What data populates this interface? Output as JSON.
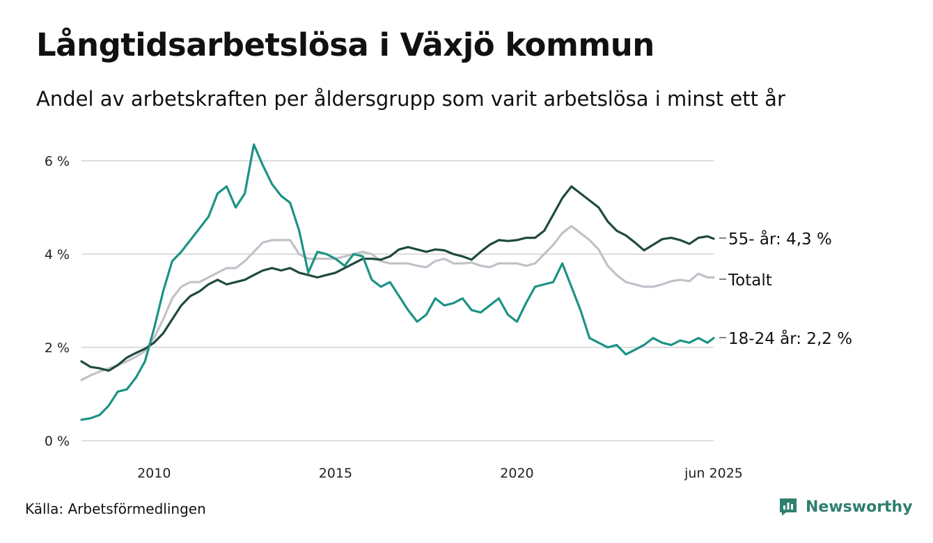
{
  "title": "Långtidsarbetslösa i Växjö kommun",
  "subtitle": "Andel av arbetskraften per åldersgrupp som varit arbetslösa i minst ett år",
  "source": "Källa: Arbetsförmedlingen",
  "brand": "Newsworthy",
  "colors": {
    "age55": "#1e4a3c",
    "total": "#c1c1c9",
    "age18_24": "#1b9384",
    "grid": "#dddddd",
    "brand": "#2f7f6f"
  },
  "chart_data": {
    "type": "line",
    "x_unit": "year (decimal)",
    "xlim": [
      2008.0,
      2025.42
    ],
    "ylim": [
      0,
      6.4
    ],
    "y_ticks": [
      0,
      2,
      4,
      6
    ],
    "y_tick_labels": [
      "0 %",
      "2 %",
      "4 %",
      "6 %"
    ],
    "x_ticks": [
      2010,
      2015,
      2020,
      2025.42
    ],
    "x_tick_labels": [
      "2010",
      "2015",
      "2020",
      "jun 2025"
    ],
    "grid": "horizontal",
    "legend": "end-of-line labels",
    "series": [
      {
        "key": "age55",
        "end_label": "55- år: 4,3 %",
        "points": [
          [
            2008.0,
            1.7
          ],
          [
            2008.25,
            1.58
          ],
          [
            2008.5,
            1.55
          ],
          [
            2008.75,
            1.5
          ],
          [
            2009.0,
            1.62
          ],
          [
            2009.25,
            1.78
          ],
          [
            2009.5,
            1.88
          ],
          [
            2009.75,
            1.97
          ],
          [
            2010.0,
            2.1
          ],
          [
            2010.25,
            2.3
          ],
          [
            2010.5,
            2.6
          ],
          [
            2010.75,
            2.9
          ],
          [
            2011.0,
            3.1
          ],
          [
            2011.25,
            3.2
          ],
          [
            2011.5,
            3.35
          ],
          [
            2011.75,
            3.45
          ],
          [
            2012.0,
            3.35
          ],
          [
            2012.25,
            3.4
          ],
          [
            2012.5,
            3.45
          ],
          [
            2012.75,
            3.55
          ],
          [
            2013.0,
            3.65
          ],
          [
            2013.25,
            3.7
          ],
          [
            2013.5,
            3.65
          ],
          [
            2013.75,
            3.7
          ],
          [
            2014.0,
            3.6
          ],
          [
            2014.25,
            3.55
          ],
          [
            2014.5,
            3.5
          ],
          [
            2014.75,
            3.55
          ],
          [
            2015.0,
            3.6
          ],
          [
            2015.25,
            3.7
          ],
          [
            2015.5,
            3.8
          ],
          [
            2015.75,
            3.9
          ],
          [
            2016.0,
            3.9
          ],
          [
            2016.25,
            3.88
          ],
          [
            2016.5,
            3.95
          ],
          [
            2016.75,
            4.1
          ],
          [
            2017.0,
            4.15
          ],
          [
            2017.25,
            4.1
          ],
          [
            2017.5,
            4.05
          ],
          [
            2017.75,
            4.1
          ],
          [
            2018.0,
            4.08
          ],
          [
            2018.25,
            4.0
          ],
          [
            2018.5,
            3.95
          ],
          [
            2018.75,
            3.88
          ],
          [
            2019.0,
            4.05
          ],
          [
            2019.25,
            4.2
          ],
          [
            2019.5,
            4.3
          ],
          [
            2019.75,
            4.28
          ],
          [
            2020.0,
            4.3
          ],
          [
            2020.25,
            4.35
          ],
          [
            2020.5,
            4.35
          ],
          [
            2020.75,
            4.5
          ],
          [
            2021.0,
            4.85
          ],
          [
            2021.25,
            5.2
          ],
          [
            2021.5,
            5.45
          ],
          [
            2021.75,
            5.3
          ],
          [
            2022.0,
            5.15
          ],
          [
            2022.25,
            5.0
          ],
          [
            2022.5,
            4.7
          ],
          [
            2022.75,
            4.5
          ],
          [
            2023.0,
            4.4
          ],
          [
            2023.25,
            4.25
          ],
          [
            2023.5,
            4.08
          ],
          [
            2023.75,
            4.2
          ],
          [
            2024.0,
            4.32
          ],
          [
            2024.25,
            4.35
          ],
          [
            2024.5,
            4.3
          ],
          [
            2024.75,
            4.22
          ],
          [
            2025.0,
            4.35
          ],
          [
            2025.25,
            4.38
          ],
          [
            2025.42,
            4.33
          ]
        ]
      },
      {
        "key": "total",
        "end_label": "Totalt",
        "points": [
          [
            2008.0,
            1.3
          ],
          [
            2008.25,
            1.4
          ],
          [
            2008.5,
            1.48
          ],
          [
            2008.75,
            1.55
          ],
          [
            2009.0,
            1.62
          ],
          [
            2009.25,
            1.7
          ],
          [
            2009.5,
            1.8
          ],
          [
            2009.75,
            1.92
          ],
          [
            2010.0,
            2.2
          ],
          [
            2010.25,
            2.6
          ],
          [
            2010.5,
            3.05
          ],
          [
            2010.75,
            3.3
          ],
          [
            2011.0,
            3.4
          ],
          [
            2011.25,
            3.4
          ],
          [
            2011.5,
            3.5
          ],
          [
            2011.75,
            3.6
          ],
          [
            2012.0,
            3.7
          ],
          [
            2012.25,
            3.7
          ],
          [
            2012.5,
            3.85
          ],
          [
            2012.75,
            4.05
          ],
          [
            2013.0,
            4.25
          ],
          [
            2013.25,
            4.3
          ],
          [
            2013.5,
            4.3
          ],
          [
            2013.75,
            4.3
          ],
          [
            2014.0,
            4.0
          ],
          [
            2014.25,
            3.9
          ],
          [
            2014.5,
            3.9
          ],
          [
            2014.75,
            3.9
          ],
          [
            2015.0,
            3.9
          ],
          [
            2015.25,
            3.95
          ],
          [
            2015.5,
            4.0
          ],
          [
            2015.75,
            4.05
          ],
          [
            2016.0,
            4.0
          ],
          [
            2016.25,
            3.85
          ],
          [
            2016.5,
            3.8
          ],
          [
            2016.75,
            3.8
          ],
          [
            2017.0,
            3.8
          ],
          [
            2017.25,
            3.75
          ],
          [
            2017.5,
            3.72
          ],
          [
            2017.75,
            3.85
          ],
          [
            2018.0,
            3.9
          ],
          [
            2018.25,
            3.8
          ],
          [
            2018.5,
            3.8
          ],
          [
            2018.75,
            3.82
          ],
          [
            2019.0,
            3.75
          ],
          [
            2019.25,
            3.72
          ],
          [
            2019.5,
            3.8
          ],
          [
            2019.75,
            3.8
          ],
          [
            2020.0,
            3.8
          ],
          [
            2020.25,
            3.75
          ],
          [
            2020.5,
            3.8
          ],
          [
            2020.75,
            4.0
          ],
          [
            2021.0,
            4.2
          ],
          [
            2021.25,
            4.45
          ],
          [
            2021.5,
            4.6
          ],
          [
            2021.75,
            4.45
          ],
          [
            2022.0,
            4.3
          ],
          [
            2022.25,
            4.1
          ],
          [
            2022.5,
            3.75
          ],
          [
            2022.75,
            3.55
          ],
          [
            2023.0,
            3.4
          ],
          [
            2023.25,
            3.35
          ],
          [
            2023.5,
            3.3
          ],
          [
            2023.75,
            3.3
          ],
          [
            2024.0,
            3.35
          ],
          [
            2024.25,
            3.42
          ],
          [
            2024.5,
            3.45
          ],
          [
            2024.75,
            3.42
          ],
          [
            2025.0,
            3.58
          ],
          [
            2025.25,
            3.5
          ],
          [
            2025.42,
            3.5
          ]
        ]
      },
      {
        "key": "age18_24",
        "end_label": "18-24 år: 2,2 %",
        "points": [
          [
            2008.0,
            0.45
          ],
          [
            2008.25,
            0.48
          ],
          [
            2008.5,
            0.55
          ],
          [
            2008.75,
            0.75
          ],
          [
            2009.0,
            1.05
          ],
          [
            2009.25,
            1.1
          ],
          [
            2009.5,
            1.35
          ],
          [
            2009.75,
            1.7
          ],
          [
            2010.0,
            2.4
          ],
          [
            2010.25,
            3.2
          ],
          [
            2010.5,
            3.85
          ],
          [
            2010.75,
            4.05
          ],
          [
            2011.0,
            4.3
          ],
          [
            2011.25,
            4.55
          ],
          [
            2011.5,
            4.8
          ],
          [
            2011.75,
            5.3
          ],
          [
            2012.0,
            5.45
          ],
          [
            2012.25,
            5.0
          ],
          [
            2012.5,
            5.3
          ],
          [
            2012.75,
            6.35
          ],
          [
            2013.0,
            5.9
          ],
          [
            2013.25,
            5.5
          ],
          [
            2013.5,
            5.25
          ],
          [
            2013.75,
            5.1
          ],
          [
            2014.0,
            4.5
          ],
          [
            2014.25,
            3.6
          ],
          [
            2014.5,
            4.05
          ],
          [
            2014.75,
            4.0
          ],
          [
            2015.0,
            3.9
          ],
          [
            2015.25,
            3.75
          ],
          [
            2015.5,
            4.0
          ],
          [
            2015.75,
            3.95
          ],
          [
            2016.0,
            3.45
          ],
          [
            2016.25,
            3.3
          ],
          [
            2016.5,
            3.4
          ],
          [
            2016.75,
            3.1
          ],
          [
            2017.0,
            2.8
          ],
          [
            2017.25,
            2.55
          ],
          [
            2017.5,
            2.7
          ],
          [
            2017.75,
            3.05
          ],
          [
            2018.0,
            2.9
          ],
          [
            2018.25,
            2.95
          ],
          [
            2018.5,
            3.05
          ],
          [
            2018.75,
            2.8
          ],
          [
            2019.0,
            2.75
          ],
          [
            2019.25,
            2.9
          ],
          [
            2019.5,
            3.05
          ],
          [
            2019.75,
            2.7
          ],
          [
            2020.0,
            2.55
          ],
          [
            2020.25,
            2.95
          ],
          [
            2020.5,
            3.3
          ],
          [
            2020.75,
            3.35
          ],
          [
            2021.0,
            3.4
          ],
          [
            2021.25,
            3.8
          ],
          [
            2021.5,
            3.3
          ],
          [
            2021.75,
            2.8
          ],
          [
            2022.0,
            2.2
          ],
          [
            2022.25,
            2.1
          ],
          [
            2022.5,
            2.0
          ],
          [
            2022.75,
            2.05
          ],
          [
            2023.0,
            1.85
          ],
          [
            2023.25,
            1.95
          ],
          [
            2023.5,
            2.05
          ],
          [
            2023.75,
            2.2
          ],
          [
            2024.0,
            2.1
          ],
          [
            2024.25,
            2.05
          ],
          [
            2024.5,
            2.15
          ],
          [
            2024.75,
            2.1
          ],
          [
            2025.0,
            2.2
          ],
          [
            2025.25,
            2.1
          ],
          [
            2025.42,
            2.2
          ]
        ]
      }
    ]
  }
}
